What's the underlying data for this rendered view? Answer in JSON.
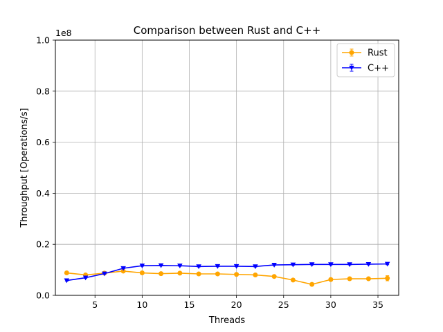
{
  "chart_data": {
    "type": "line",
    "title": "Comparison between Rust and C++",
    "xlabel": "Threads",
    "ylabel": "Throughput [Operations/s]",
    "y_scale_label": "1e8",
    "xlim": [
      0.8,
      37.2
    ],
    "ylim": [
      0,
      1.0
    ],
    "x_ticks": [
      5,
      10,
      15,
      20,
      25,
      30,
      35
    ],
    "y_ticks": [
      0.0,
      0.2,
      0.4,
      0.6,
      0.8,
      1.0
    ],
    "x_tick_labels": [
      "5",
      "10",
      "15",
      "20",
      "25",
      "30",
      "35"
    ],
    "y_tick_labels": [
      "0.0",
      "0.2",
      "0.4",
      "0.6",
      "0.8",
      "1.0"
    ],
    "grid": true,
    "legend_position": "top-right",
    "x": [
      2,
      4,
      6,
      8,
      10,
      12,
      14,
      16,
      18,
      20,
      22,
      24,
      26,
      28,
      30,
      32,
      34,
      36
    ],
    "series": [
      {
        "name": "Rust",
        "color": "#ffa500",
        "marker": "circle",
        "values": [
          0.088,
          0.08,
          0.087,
          0.095,
          0.088,
          0.085,
          0.087,
          0.084,
          0.084,
          0.082,
          0.08,
          0.074,
          0.06,
          0.043,
          0.062,
          0.065,
          0.065,
          0.067
        ],
        "errors": [
          0.003,
          0.002,
          0.002,
          0.003,
          0.003,
          0.002,
          0.002,
          0.002,
          0.002,
          0.002,
          0.002,
          0.002,
          0.003,
          0.002,
          0.003,
          0.003,
          0.003,
          0.01
        ]
      },
      {
        "name": "C++",
        "color": "#0000ff",
        "marker": "triangle-down",
        "values": [
          0.058,
          0.069,
          0.085,
          0.106,
          0.116,
          0.117,
          0.116,
          0.113,
          0.114,
          0.114,
          0.113,
          0.119,
          0.12,
          0.121,
          0.121,
          0.121,
          0.122,
          0.123
        ],
        "errors": [
          0.002,
          0.002,
          0.002,
          0.002,
          0.002,
          0.002,
          0.002,
          0.002,
          0.002,
          0.002,
          0.002,
          0.002,
          0.002,
          0.002,
          0.002,
          0.002,
          0.002,
          0.003
        ]
      }
    ]
  }
}
